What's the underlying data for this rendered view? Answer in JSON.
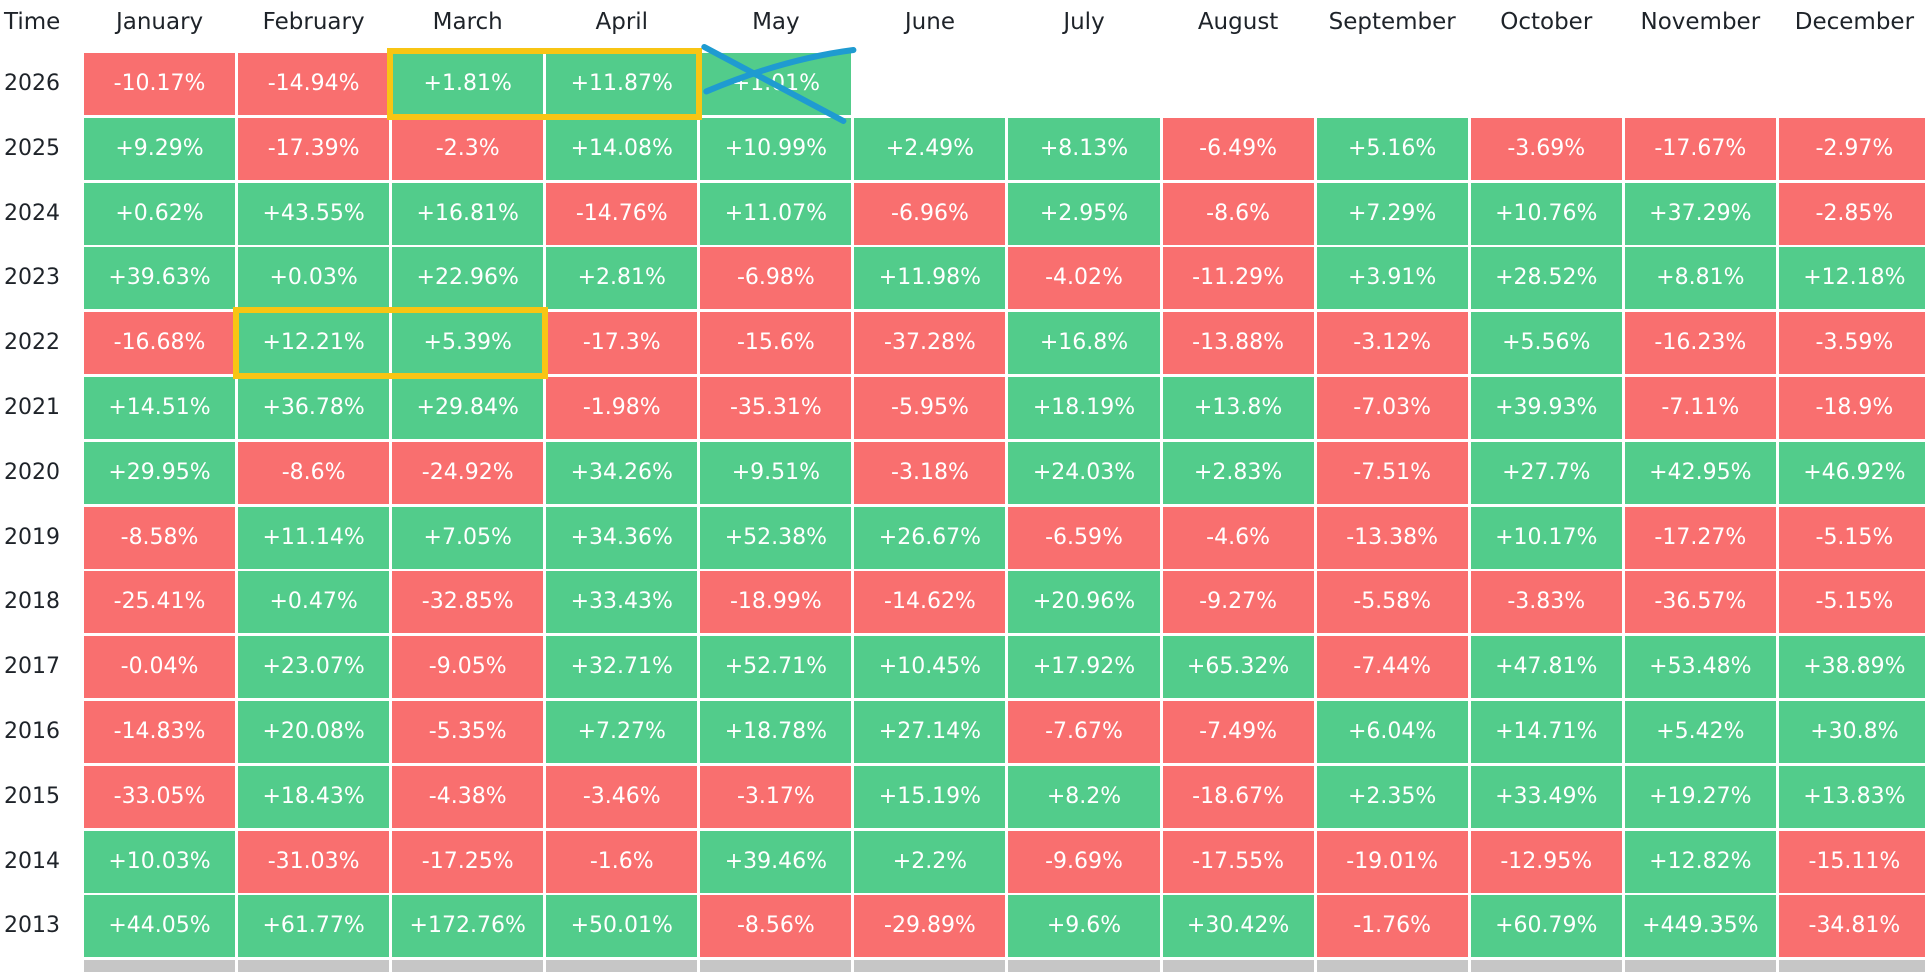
{
  "chart_data": {
    "type": "table",
    "corner_label": "Time",
    "months": [
      "January",
      "February",
      "March",
      "April",
      "May",
      "June",
      "July",
      "August",
      "September",
      "October",
      "November",
      "December"
    ],
    "rows": [
      {
        "year": "2026",
        "values": [
          "-10.17%",
          "-14.94%",
          "+1.81%",
          "+11.87%",
          "+1.01%"
        ]
      },
      {
        "year": "2025",
        "values": [
          "+9.29%",
          "-17.39%",
          "-2.3%",
          "+14.08%",
          "+10.99%",
          "+2.49%",
          "+8.13%",
          "-6.49%",
          "+5.16%",
          "-3.69%",
          "-17.67%",
          "-2.97%"
        ]
      },
      {
        "year": "2024",
        "values": [
          "+0.62%",
          "+43.55%",
          "+16.81%",
          "-14.76%",
          "+11.07%",
          "-6.96%",
          "+2.95%",
          "-8.6%",
          "+7.29%",
          "+10.76%",
          "+37.29%",
          "-2.85%"
        ]
      },
      {
        "year": "2023",
        "values": [
          "+39.63%",
          "+0.03%",
          "+22.96%",
          "+2.81%",
          "-6.98%",
          "+11.98%",
          "-4.02%",
          "-11.29%",
          "+3.91%",
          "+28.52%",
          "+8.81%",
          "+12.18%"
        ]
      },
      {
        "year": "2022",
        "values": [
          "-16.68%",
          "+12.21%",
          "+5.39%",
          "-17.3%",
          "-15.6%",
          "-37.28%",
          "+16.8%",
          "-13.88%",
          "-3.12%",
          "+5.56%",
          "-16.23%",
          "-3.59%"
        ]
      },
      {
        "year": "2021",
        "values": [
          "+14.51%",
          "+36.78%",
          "+29.84%",
          "-1.98%",
          "-35.31%",
          "-5.95%",
          "+18.19%",
          "+13.8%",
          "-7.03%",
          "+39.93%",
          "-7.11%",
          "-18.9%"
        ]
      },
      {
        "year": "2020",
        "values": [
          "+29.95%",
          "-8.6%",
          "-24.92%",
          "+34.26%",
          "+9.51%",
          "-3.18%",
          "+24.03%",
          "+2.83%",
          "-7.51%",
          "+27.7%",
          "+42.95%",
          "+46.92%"
        ]
      },
      {
        "year": "2019",
        "values": [
          "-8.58%",
          "+11.14%",
          "+7.05%",
          "+34.36%",
          "+52.38%",
          "+26.67%",
          "-6.59%",
          "-4.6%",
          "-13.38%",
          "+10.17%",
          "-17.27%",
          "-5.15%"
        ]
      },
      {
        "year": "2018",
        "values": [
          "-25.41%",
          "+0.47%",
          "-32.85%",
          "+33.43%",
          "-18.99%",
          "-14.62%",
          "+20.96%",
          "-9.27%",
          "-5.58%",
          "-3.83%",
          "-36.57%",
          "-5.15%"
        ]
      },
      {
        "year": "2017",
        "values": [
          "-0.04%",
          "+23.07%",
          "-9.05%",
          "+32.71%",
          "+52.71%",
          "+10.45%",
          "+17.92%",
          "+65.32%",
          "-7.44%",
          "+47.81%",
          "+53.48%",
          "+38.89%"
        ]
      },
      {
        "year": "2016",
        "values": [
          "-14.83%",
          "+20.08%",
          "-5.35%",
          "+7.27%",
          "+18.78%",
          "+27.14%",
          "-7.67%",
          "-7.49%",
          "+6.04%",
          "+14.71%",
          "+5.42%",
          "+30.8%"
        ]
      },
      {
        "year": "2015",
        "values": [
          "-33.05%",
          "+18.43%",
          "-4.38%",
          "-3.46%",
          "-3.17%",
          "+15.19%",
          "+8.2%",
          "-18.67%",
          "+2.35%",
          "+33.49%",
          "+19.27%",
          "+13.83%"
        ]
      },
      {
        "year": "2014",
        "values": [
          "+10.03%",
          "-31.03%",
          "-17.25%",
          "-1.6%",
          "+39.46%",
          "+2.2%",
          "-9.69%",
          "-17.55%",
          "-19.01%",
          "-12.95%",
          "+12.82%",
          "-15.11%"
        ]
      },
      {
        "year": "2013",
        "values": [
          "+44.05%",
          "+61.77%",
          "+172.76%",
          "+50.01%",
          "-8.56%",
          "-29.89%",
          "+9.6%",
          "+30.42%",
          "-1.76%",
          "+60.79%",
          "+449.35%",
          "-34.81%"
        ]
      }
    ],
    "highlights": [
      {
        "year": "2026",
        "from_month": "March",
        "to_month": "April"
      },
      {
        "year": "2022",
        "from_month": "February",
        "to_month": "March"
      }
    ],
    "crossed_out": [
      {
        "year": "2026",
        "month": "May"
      }
    ]
  },
  "colors": {
    "positive": "#52cc8b",
    "negative": "#f96f6f",
    "highlight": "#f8c514",
    "cross": "#1f9bd1",
    "footer": "#c6c6c6",
    "header_text": "#1e2329"
  }
}
